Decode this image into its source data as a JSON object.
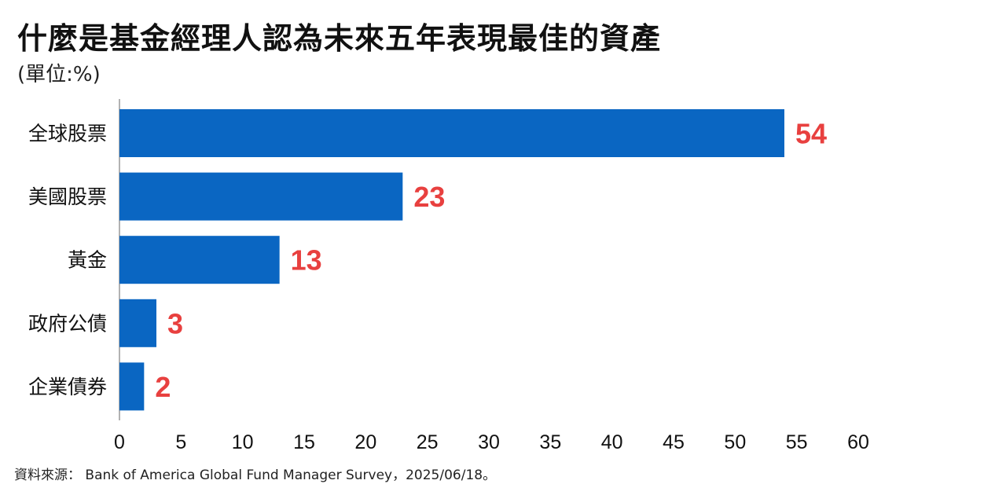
{
  "title": "什麼是基金經理人認為未來五年表現最佳的資產",
  "unit": "(單位:%)",
  "source": "資料來源： Bank of America Global Fund Manager Survey，2025/06/18。",
  "colors": {
    "bar": "#0a66c2",
    "value_label": "#e8403f",
    "axis": "#999999",
    "text": "#111111"
  },
  "chart_data": {
    "type": "bar",
    "orientation": "horizontal",
    "categories": [
      "全球股票",
      "美國股票",
      "黃金",
      "政府公債",
      "企業債券"
    ],
    "values": [
      54,
      23,
      13,
      3,
      2
    ],
    "data_labels": [
      "54",
      "23",
      "13",
      "3",
      "2"
    ],
    "xlim": [
      0,
      60
    ],
    "xticks": [
      "0",
      "5",
      "10",
      "15",
      "20",
      "25",
      "30",
      "35",
      "40",
      "45",
      "50",
      "55",
      "60"
    ],
    "grid": false,
    "legend": "none"
  }
}
